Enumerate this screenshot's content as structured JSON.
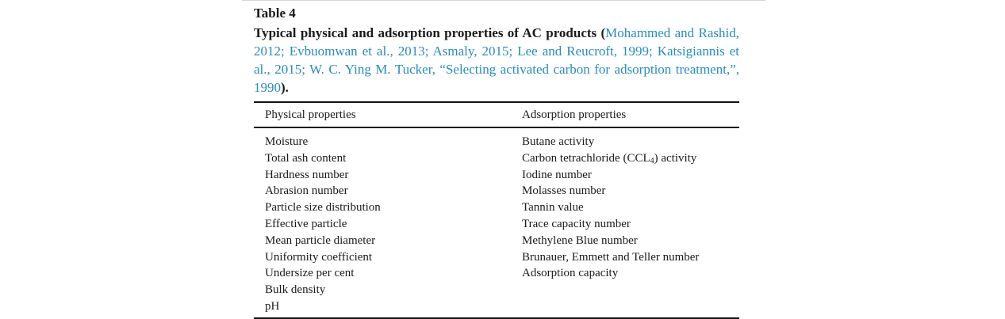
{
  "table_label": "Table 4",
  "caption": {
    "lead": "Typical physical and adsorption properties of AC products (",
    "refs": "Mohammed and Rashid, 2012; Evbuomwan et al., 2013; Asmaly, 2015; Lee and Reucroft, 1999; Katsigiannis et al., 2015; W. C. Ying M. Tucker, “Selecting activated carbon for adsorption treatment,”, 1990",
    "tail": ")."
  },
  "headers": [
    "Physical properties",
    "Adsorption properties"
  ],
  "rows": [
    {
      "physical": "Moisture",
      "adsorption": "Butane activity"
    },
    {
      "physical": "Total ash content",
      "adsorption_pre": "Carbon tetrachloride (CCL",
      "adsorption_sub": "4",
      "adsorption_post": ") activity"
    },
    {
      "physical": "Hardness number",
      "adsorption": "Iodine number"
    },
    {
      "physical": "Abrasion number",
      "adsorption": "Molasses number"
    },
    {
      "physical": "Particle size distribution",
      "adsorption": "Tannin value"
    },
    {
      "physical": "Effective particle",
      "adsorption": "Trace capacity number"
    },
    {
      "physical": "Mean particle diameter",
      "adsorption": "Methylene Blue number"
    },
    {
      "physical": "Uniformity coefficient",
      "adsorption": "Brunauer, Emmett and Teller number"
    },
    {
      "physical": "Undersize per cent",
      "adsorption": "Adsorption capacity"
    },
    {
      "physical": "Bulk density",
      "adsorption": ""
    },
    {
      "physical": "pH",
      "adsorption": ""
    }
  ]
}
